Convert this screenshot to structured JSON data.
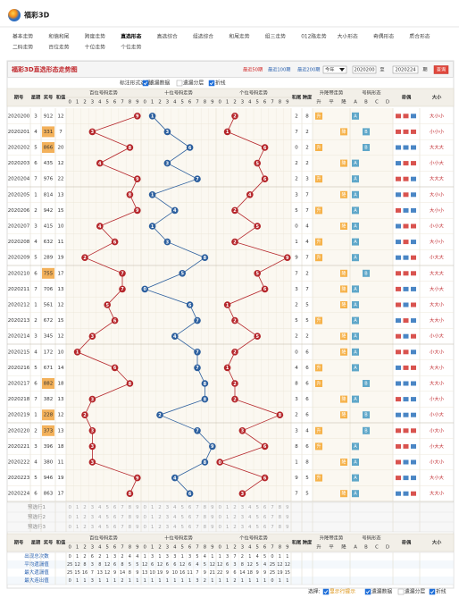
{
  "header": {
    "logo": "福彩3D"
  },
  "nav": [
    [
      "基本走势",
      "和值和尾",
      "跨度走势",
      "直选形态",
      "直选综合",
      "组选综合",
      "和尾走势",
      "组三走势",
      "012路走势",
      "大小形态",
      "奇偶形态",
      "质合形态"
    ],
    [
      "二码走势",
      "百位走势",
      "十位走势",
      "个位走势"
    ]
  ],
  "nav_active": {
    "row": 0,
    "index": 3
  },
  "panel": {
    "title": "福彩3D直选形态走势图",
    "quick": [
      "最近50期",
      "最近100期",
      "最近200期"
    ],
    "year": "今年",
    "from": "2020200",
    "to_label": "至",
    "to": "2020224",
    "period": "期",
    "query": "查询",
    "options_label": "标注形式选择:",
    "options": [
      {
        "label": "遗漏数据",
        "checked": true
      },
      {
        "label": "遗漏分层",
        "checked": false
      },
      {
        "label": "折线",
        "checked": true
      }
    ]
  },
  "table": {
    "columns": {
      "issue": "期号",
      "week": "星期",
      "number": "奖号",
      "sum": "和值",
      "hundreds": "百位号码走势",
      "tens": "十位号码走势",
      "units": "个位号码走势",
      "tail": "和尾",
      "span": "跨度",
      "trend": "升降带走势",
      "form": "号码形态",
      "parity": "奇偶",
      "size": "大小"
    },
    "digits": [
      0,
      1,
      2,
      3,
      4,
      5,
      6,
      7,
      8,
      9
    ],
    "trend_labels": [
      "升",
      "平",
      "降"
    ],
    "form_labels": [
      "A",
      "B",
      "C",
      "D"
    ],
    "rows": [
      {
        "issue": "2020200",
        "week": 3,
        "number": "912",
        "digits": [
          9,
          1,
          2
        ],
        "sum": 12,
        "tail": 2,
        "span": 8,
        "trend": "升",
        "form": "A",
        "size": "大小小"
      },
      {
        "issue": "2020201",
        "week": 4,
        "number": "331",
        "digits": [
          3,
          3,
          1
        ],
        "sum": 7,
        "tail": 7,
        "span": 2,
        "trend": "降",
        "form": "B",
        "size": "小小小"
      },
      {
        "issue": "2020202",
        "week": 5,
        "number": "866",
        "digits": [
          8,
          6,
          6
        ],
        "sum": 20,
        "tail": 0,
        "span": 2,
        "trend": "升",
        "form": "B",
        "size": "大大大"
      },
      {
        "issue": "2020203",
        "week": 6,
        "number": "435",
        "digits": [
          4,
          3,
          5
        ],
        "sum": 12,
        "tail": 2,
        "span": 2,
        "trend": "降",
        "form": "A",
        "size": "小小大"
      },
      {
        "issue": "2020204",
        "week": 7,
        "number": "976",
        "digits": [
          9,
          7,
          6
        ],
        "sum": 22,
        "tail": 2,
        "span": 3,
        "trend": "升",
        "form": "A",
        "size": "大大大"
      },
      {
        "issue": "2020205",
        "week": 1,
        "number": "814",
        "digits": [
          8,
          1,
          4
        ],
        "sum": 13,
        "tail": 3,
        "span": 7,
        "trend": "降",
        "form": "A",
        "size": "大小小"
      },
      {
        "issue": "2020206",
        "week": 2,
        "number": "942",
        "digits": [
          9,
          4,
          2
        ],
        "sum": 15,
        "tail": 5,
        "span": 7,
        "trend": "升",
        "form": "A",
        "size": "大小小"
      },
      {
        "issue": "2020207",
        "week": 3,
        "number": "415",
        "digits": [
          4,
          1,
          5
        ],
        "sum": 10,
        "tail": 0,
        "span": 4,
        "trend": "降",
        "form": "A",
        "size": "小小大"
      },
      {
        "issue": "2020208",
        "week": 4,
        "number": "632",
        "digits": [
          6,
          3,
          2
        ],
        "sum": 11,
        "tail": 1,
        "span": 4,
        "trend": "升",
        "form": "A",
        "size": "大小小"
      },
      {
        "issue": "2020209",
        "week": 5,
        "number": "289",
        "digits": [
          2,
          8,
          9
        ],
        "sum": 19,
        "tail": 9,
        "span": 7,
        "trend": "升",
        "form": "A",
        "size": "小大大"
      },
      {
        "issue": "2020210",
        "week": 6,
        "number": "755",
        "digits": [
          7,
          5,
          5
        ],
        "sum": 17,
        "tail": 7,
        "span": 2,
        "trend": "降",
        "form": "B",
        "size": "大大大"
      },
      {
        "issue": "2020211",
        "week": 7,
        "number": "706",
        "digits": [
          7,
          0,
          6
        ],
        "sum": 13,
        "tail": 3,
        "span": 7,
        "trend": "降",
        "form": "A",
        "size": "大小大"
      },
      {
        "issue": "2020212",
        "week": 1,
        "number": "561",
        "digits": [
          5,
          6,
          1
        ],
        "sum": 12,
        "tail": 2,
        "span": 5,
        "trend": "降",
        "form": "A",
        "size": "大大小"
      },
      {
        "issue": "2020213",
        "week": 2,
        "number": "672",
        "digits": [
          6,
          7,
          2
        ],
        "sum": 15,
        "tail": 5,
        "span": 5,
        "trend": "升",
        "form": "A",
        "size": "大大小"
      },
      {
        "issue": "2020214",
        "week": 3,
        "number": "345",
        "digits": [
          3,
          4,
          5
        ],
        "sum": 12,
        "tail": 2,
        "span": 2,
        "trend": "降",
        "form": "A",
        "size": "小小大"
      },
      {
        "issue": "2020215",
        "week": 4,
        "number": "172",
        "digits": [
          1,
          7,
          2
        ],
        "sum": 10,
        "tail": 0,
        "span": 6,
        "trend": "降",
        "form": "A",
        "size": "小大小"
      },
      {
        "issue": "2020216",
        "week": 5,
        "number": "671",
        "digits": [
          6,
          7,
          1
        ],
        "sum": 14,
        "tail": 4,
        "span": 6,
        "trend": "升",
        "form": "A",
        "size": "大大小"
      },
      {
        "issue": "2020217",
        "week": 6,
        "number": "882",
        "digits": [
          8,
          8,
          2
        ],
        "sum": 18,
        "tail": 8,
        "span": 6,
        "trend": "升",
        "form": "B",
        "size": "大大小"
      },
      {
        "issue": "2020218",
        "week": 7,
        "number": "382",
        "digits": [
          3,
          8,
          2
        ],
        "sum": 13,
        "tail": 3,
        "span": 6,
        "trend": "降",
        "form": "A",
        "size": "小大小"
      },
      {
        "issue": "2020219",
        "week": 1,
        "number": "228",
        "digits": [
          2,
          2,
          8
        ],
        "sum": 12,
        "tail": 2,
        "span": 6,
        "trend": "降",
        "form": "B",
        "size": "小小大"
      },
      {
        "issue": "2020220",
        "week": 2,
        "number": "373",
        "digits": [
          3,
          7,
          3
        ],
        "sum": 13,
        "tail": 3,
        "span": 4,
        "trend": "升",
        "form": "B",
        "size": "小大小"
      },
      {
        "issue": "2020221",
        "week": 3,
        "number": "396",
        "digits": [
          3,
          9,
          6
        ],
        "sum": 18,
        "tail": 8,
        "span": 6,
        "trend": "升",
        "form": "A",
        "size": "小大大"
      },
      {
        "issue": "2020222",
        "week": 4,
        "number": "380",
        "digits": [
          3,
          8,
          0
        ],
        "sum": 11,
        "tail": 1,
        "span": 8,
        "trend": "降",
        "form": "A",
        "size": "小大小"
      },
      {
        "issue": "2020223",
        "week": 5,
        "number": "946",
        "digits": [
          9,
          4,
          6
        ],
        "sum": 19,
        "tail": 9,
        "span": 5,
        "trend": "升",
        "form": "A",
        "size": "大小大"
      },
      {
        "issue": "2020224",
        "week": 6,
        "number": "863",
        "digits": [
          8,
          6,
          3
        ],
        "sum": 17,
        "tail": 7,
        "span": 5,
        "trend": "降",
        "form": "A",
        "size": "大大小"
      }
    ],
    "preselect": [
      "预选行1",
      "预选行2",
      "预选行3"
    ],
    "stats": [
      {
        "label": "出现总次数",
        "values": [
          0,
          1,
          2,
          6,
          2,
          1,
          3,
          2,
          4,
          4,
          1,
          3,
          1,
          3,
          3,
          1,
          3,
          5,
          4,
          1,
          1,
          3,
          7,
          2,
          1,
          4,
          5,
          0,
          1,
          1
        ]
      },
      {
        "label": "平均遗漏值",
        "values": [
          25,
          12,
          8,
          3,
          8,
          12,
          6,
          8,
          5,
          5,
          12,
          6,
          12,
          6,
          6,
          12,
          6,
          4,
          5,
          12,
          12,
          6,
          3,
          8,
          12,
          5,
          4,
          25,
          12,
          12
        ]
      },
      {
        "label": "最大遗漏值",
        "values": [
          25,
          15,
          16,
          7,
          13,
          12,
          9,
          14,
          8,
          9,
          13,
          10,
          19,
          9,
          10,
          16,
          11,
          7,
          9,
          21,
          22,
          9,
          6,
          14,
          18,
          9,
          9,
          25,
          19,
          15
        ]
      },
      {
        "label": "最大连出值",
        "values": [
          0,
          1,
          1,
          3,
          1,
          1,
          1,
          2,
          1,
          1,
          1,
          1,
          1,
          1,
          1,
          1,
          1,
          3,
          2,
          1,
          1,
          1,
          2,
          1,
          1,
          1,
          1,
          0,
          1,
          1
        ]
      }
    ]
  },
  "legend": {
    "label": "选择:",
    "options": [
      {
        "label": "显示行提示",
        "checked": true
      },
      {
        "label": "遗漏数据",
        "checked": true
      },
      {
        "label": "遗漏分层",
        "checked": false
      },
      {
        "label": "折线",
        "checked": true
      }
    ]
  }
}
